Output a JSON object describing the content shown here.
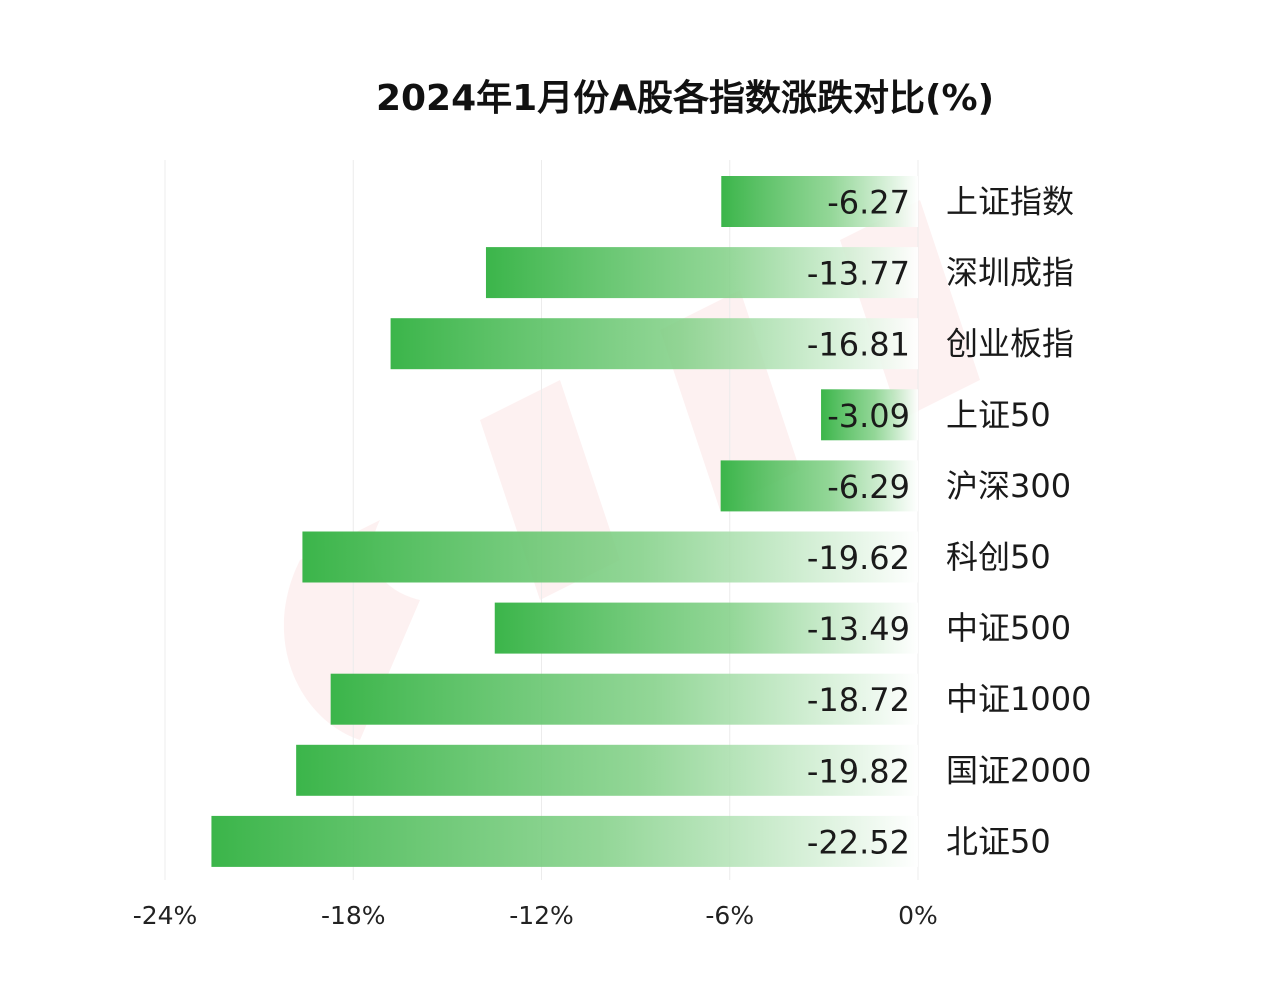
{
  "chart_data": {
    "type": "bar",
    "orientation": "horizontal",
    "title": "2024年1月份A股各指数涨跌对比(%)",
    "categories": [
      "上证指数",
      "深圳成指",
      "创业板指",
      "上证50",
      "沪深300",
      "科创50",
      "中证500",
      "中证1000",
      "国证2000",
      "北证50"
    ],
    "values": [
      -6.27,
      -13.77,
      -16.81,
      -3.09,
      -6.29,
      -19.62,
      -13.49,
      -18.72,
      -19.82,
      -22.52
    ],
    "value_labels": [
      "-6.27",
      "-13.77",
      "-16.81",
      "-3.09",
      "-6.29",
      "-19.62",
      "-13.49",
      "-18.72",
      "-19.82",
      "-22.52"
    ],
    "x_ticks": [
      -24,
      -18,
      -12,
      -6,
      0
    ],
    "x_tick_labels": [
      "-24%",
      "-18%",
      "-12%",
      "-6%",
      "0%"
    ],
    "xlim": [
      -24,
      0
    ],
    "grid": true,
    "legend": "none",
    "colors": {
      "bar_solid": "#3bb54a",
      "bar_fade": "#ffffff",
      "grid": "#ececec",
      "watermark": "#e33a3a"
    }
  }
}
